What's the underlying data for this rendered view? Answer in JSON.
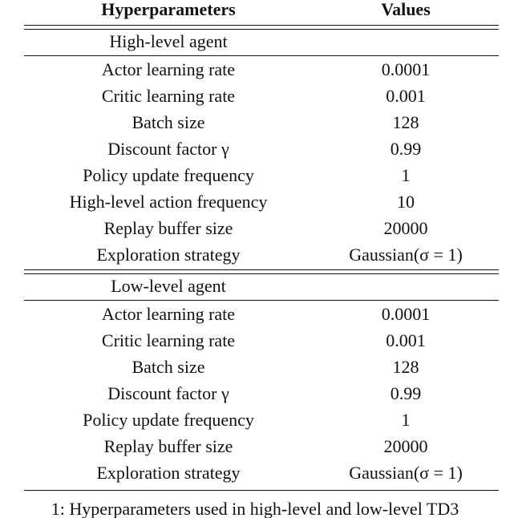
{
  "header": [
    "Hyperparameters",
    "Values"
  ],
  "sections": [
    {
      "title": "High-level agent",
      "rows": [
        [
          "Actor learning rate",
          "0.0001"
        ],
        [
          "Critic learning rate",
          "0.001"
        ],
        [
          "Batch size",
          "128"
        ],
        [
          "Discount factor γ",
          "0.99"
        ],
        [
          "Policy update frequency",
          "1"
        ],
        [
          "High-level action frequency",
          "10"
        ],
        [
          "Replay buffer size",
          "20000"
        ],
        [
          "Exploration strategy",
          "Gaussian(σ = 1)"
        ]
      ]
    },
    {
      "title": "Low-level agent",
      "rows": [
        [
          "Actor learning rate",
          "0.0001"
        ],
        [
          "Critic learning rate",
          "0.001"
        ],
        [
          "Batch size",
          "128"
        ],
        [
          "Discount factor γ",
          "0.99"
        ],
        [
          "Policy update frequency",
          "1"
        ],
        [
          "Replay buffer size",
          "20000"
        ],
        [
          "Exploration strategy",
          "Gaussian(σ = 1)"
        ]
      ]
    }
  ],
  "caption": "1: Hyperparameters used in high-level and low-level TD3"
}
